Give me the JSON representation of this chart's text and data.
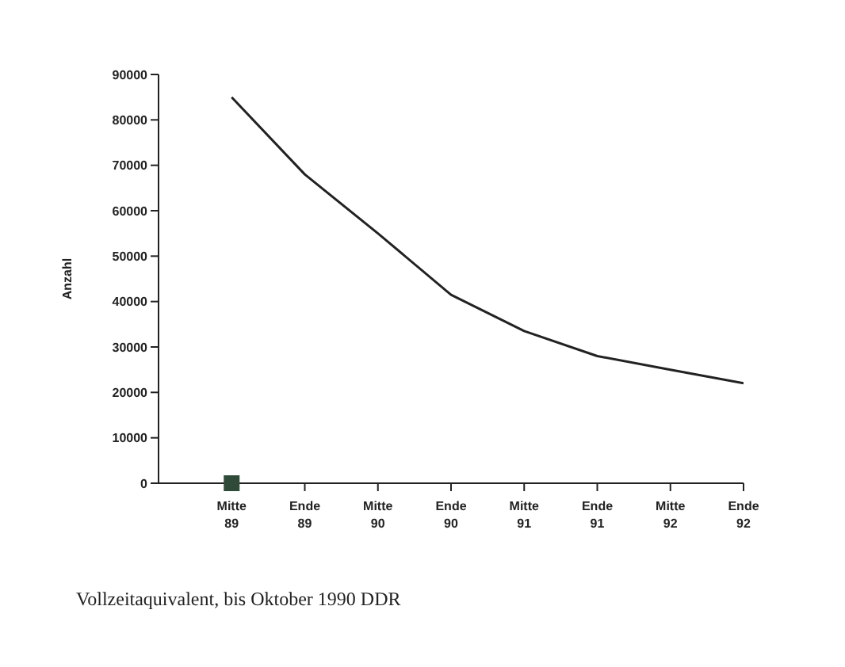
{
  "chart_data": {
    "type": "line",
    "ylabel": "Anzahl",
    "categories": [
      "Mitte 89",
      "Ende 89",
      "Mitte 90",
      "Ende 90",
      "Mitte 91",
      "Ende 91",
      "Mitte 92",
      "Ende 92"
    ],
    "series": [
      {
        "color": "#222222",
        "marker": "none",
        "values": [
          85000,
          68000,
          55000,
          41500,
          33500,
          28000,
          25000,
          22000
        ]
      },
      {
        "type": "scatter",
        "color": "#2f4a38",
        "marker": "square",
        "values": [
          0,
          null,
          null,
          null,
          null,
          null,
          null,
          null
        ]
      }
    ],
    "ylim": [
      0,
      90000
    ],
    "yticks": [
      0,
      10000,
      20000,
      30000,
      40000,
      50000,
      60000,
      70000,
      80000,
      90000
    ],
    "grid": false,
    "legend": false,
    "annotations": [
      "Vollzeitaquivalent, bis Oktober 1990 DDR"
    ]
  }
}
